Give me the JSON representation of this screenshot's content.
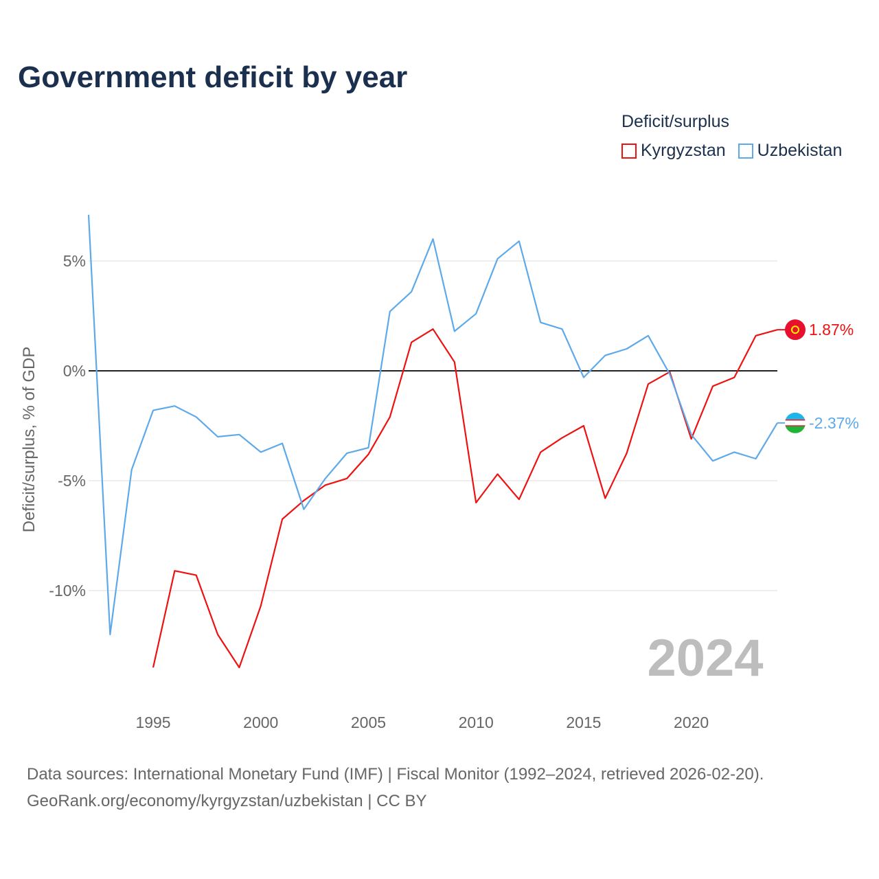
{
  "title": "Government deficit by year",
  "legend": {
    "title": "Deficit/surplus",
    "items": [
      {
        "label": "Kyrgyzstan",
        "color": "#ee1111"
      },
      {
        "label": "Uzbekistan",
        "color": "#5da9e9"
      }
    ]
  },
  "source": {
    "line1": "Data sources: International Monetary Fund (IMF) | Fiscal Monitor (1992–2024, retrieved 2026-02-20).",
    "line2": "GeoRank.org/economy/kyrgyzstan/uzbekistan | CC BY"
  },
  "chart_data": {
    "type": "line",
    "title": "Government deficit by year",
    "xlabel": "",
    "ylabel": "Deficit/surplus, % of GDP",
    "xlim": [
      1992,
      2024
    ],
    "ylim": [
      -15,
      7.5
    ],
    "xticks": [
      1995,
      2000,
      2005,
      2010,
      2015,
      2020
    ],
    "xtick_labels": [
      "1995",
      "2000",
      "2005",
      "2010",
      "2015",
      "2020"
    ],
    "yticks": [
      5,
      0,
      -5,
      -10
    ],
    "ytick_labels": [
      "5%",
      "0%",
      "-5%",
      "-10%"
    ],
    "year_watermark": "2024",
    "series": [
      {
        "name": "Kyrgyzstan",
        "color": "#ee1111",
        "end_label": "1.87%",
        "x": [
          1995,
          1996,
          1997,
          1998,
          1999,
          2000,
          2001,
          2002,
          2003,
          2004,
          2005,
          2006,
          2007,
          2008,
          2009,
          2010,
          2011,
          2012,
          2013,
          2014,
          2015,
          2016,
          2017,
          2018,
          2019,
          2020,
          2021,
          2022,
          2023,
          2024
        ],
        "values": [
          -13.5,
          -9.1,
          -9.3,
          -12.0,
          -13.5,
          -10.7,
          -6.75,
          -5.9,
          -5.2,
          -4.9,
          -3.8,
          -2.1,
          1.3,
          1.9,
          0.4,
          -6.0,
          -4.7,
          -5.85,
          -3.7,
          -3.05,
          -2.5,
          -5.8,
          -3.75,
          -0.6,
          -0.05,
          -3.1,
          -0.7,
          -0.3,
          1.6,
          1.87
        ]
      },
      {
        "name": "Uzbekistan",
        "color": "#5da9e9",
        "end_label": "-2.37%",
        "x": [
          1992,
          1993,
          1994,
          1995,
          1996,
          1997,
          1998,
          1999,
          2000,
          2001,
          2002,
          2003,
          2004,
          2005,
          2006,
          2007,
          2008,
          2009,
          2010,
          2011,
          2012,
          2013,
          2014,
          2015,
          2016,
          2017,
          2018,
          2019,
          2020,
          2021,
          2022,
          2023,
          2024
        ],
        "values": [
          7.1,
          -12.0,
          -4.5,
          -1.8,
          -1.6,
          -2.1,
          -3.0,
          -2.9,
          -3.7,
          -3.3,
          -6.3,
          -4.9,
          -3.75,
          -3.5,
          2.7,
          3.6,
          6.0,
          1.8,
          2.6,
          5.1,
          5.9,
          2.2,
          1.9,
          -0.3,
          0.7,
          1.0,
          1.6,
          -0.15,
          -2.9,
          -4.1,
          -3.7,
          -4.0,
          -2.37
        ]
      }
    ]
  }
}
